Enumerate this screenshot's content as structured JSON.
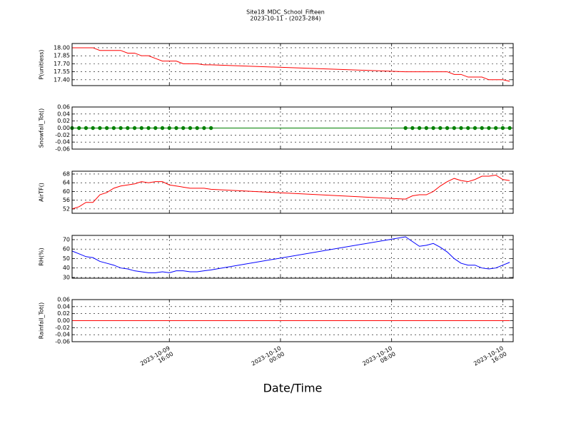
{
  "figure": {
    "title": "Site18_MDC_School_Fifteen",
    "subtitle": "2023-10-11 - (2023-284)"
  },
  "x_axis": {
    "label": "Date/Time",
    "xlim": [
      "2023-10-09 09:00",
      "2023-10-10 16:45"
    ],
    "xticks": [
      "2023-10-09 16:00",
      "2023-10-10 00:00",
      "2023-10-10 08:00",
      "2023-10-10 16:00"
    ],
    "x": [
      "2023-10-09 09:00",
      "2023-10-09 09:30",
      "2023-10-09 10:00",
      "2023-10-09 10:30",
      "2023-10-09 11:00",
      "2023-10-09 11:30",
      "2023-10-09 12:00",
      "2023-10-09 12:30",
      "2023-10-09 13:00",
      "2023-10-09 13:30",
      "2023-10-09 14:00",
      "2023-10-09 14:30",
      "2023-10-09 15:00",
      "2023-10-09 15:30",
      "2023-10-09 16:00",
      "2023-10-09 16:30",
      "2023-10-09 17:00",
      "2023-10-09 17:30",
      "2023-10-09 18:00",
      "2023-10-09 18:30",
      "2023-10-09 19:00",
      "2023-10-10 09:00",
      "2023-10-10 09:30",
      "2023-10-10 10:00",
      "2023-10-10 10:30",
      "2023-10-10 11:00",
      "2023-10-10 11:30",
      "2023-10-10 12:00",
      "2023-10-10 12:30",
      "2023-10-10 13:00",
      "2023-10-10 13:30",
      "2023-10-10 14:00",
      "2023-10-10 14:30",
      "2023-10-10 15:00",
      "2023-10-10 15:30",
      "2023-10-10 16:00",
      "2023-10-10 16:30"
    ]
  },
  "chart_data": [
    {
      "type": "line",
      "ylabel": "P(unitless)",
      "color": "#ff0000",
      "marker": false,
      "grid": true,
      "ylim": [
        17.29,
        18.08
      ],
      "yticks": [
        {
          "value": 17.4,
          "label": "17.40"
        },
        {
          "value": 17.55,
          "label": "17.55"
        },
        {
          "value": 17.7,
          "label": "17.70"
        },
        {
          "value": 17.85,
          "label": "17.85"
        },
        {
          "value": 18,
          "label": "18.00"
        }
      ],
      "values": [
        18.0,
        18.0,
        18.0,
        18.0,
        17.95,
        17.95,
        17.95,
        17.95,
        17.9,
        17.9,
        17.85,
        17.85,
        17.8,
        17.75,
        17.75,
        17.75,
        17.7,
        17.7,
        17.7,
        17.68,
        17.68,
        17.55,
        17.55,
        17.55,
        17.55,
        17.55,
        17.55,
        17.55,
        17.5,
        17.5,
        17.45,
        17.45,
        17.45,
        17.4,
        17.4,
        17.4,
        17.37
      ]
    },
    {
      "type": "line",
      "ylabel": "Snowfall_Tot()",
      "color": "#008000",
      "marker": true,
      "grid": true,
      "ylim": [
        -0.06,
        0.06
      ],
      "yticks": [
        -0.06,
        -0.04,
        -0.02,
        {
          "value": 0,
          "label": "0.00"
        },
        0.02,
        0.04,
        0.06
      ],
      "values": [
        0,
        0,
        0,
        0,
        0,
        0,
        0,
        0,
        0,
        0,
        0,
        0,
        0,
        0,
        0,
        0,
        0,
        0,
        0,
        0,
        0,
        0,
        0,
        0,
        0,
        0,
        0,
        0,
        0,
        0,
        0,
        0,
        0,
        0,
        0,
        0,
        0
      ]
    },
    {
      "type": "line",
      "ylabel": "AirTF()",
      "color": "#ff0000",
      "marker": false,
      "grid": true,
      "ylim": [
        50,
        69.3
      ],
      "yticks": [
        52,
        56,
        60,
        64,
        68
      ],
      "values": [
        52,
        53,
        55,
        55,
        58.5,
        59.5,
        61.5,
        62.5,
        63,
        63.5,
        64.5,
        64,
        64.5,
        64.5,
        63,
        62.5,
        62,
        61.5,
        61.5,
        61.5,
        61,
        56.5,
        58,
        58.5,
        58.5,
        60,
        62.5,
        64.5,
        66,
        65,
        64.5,
        65.5,
        67,
        67,
        67.5,
        65.5,
        65
      ]
    },
    {
      "type": "line",
      "ylabel": "RH(%)",
      "color": "#0000ff",
      "marker": false,
      "grid": true,
      "ylim": [
        29.2,
        74.5
      ],
      "yticks": [
        30,
        40,
        50,
        60,
        70
      ],
      "values": [
        58,
        55,
        52,
        51,
        47,
        45,
        43,
        40,
        39,
        37,
        36,
        35,
        35,
        36,
        35,
        37,
        37,
        36,
        36,
        37,
        38,
        73,
        68,
        63,
        64,
        66,
        62,
        57,
        50,
        45,
        43,
        43,
        40,
        39,
        40,
        43,
        46
      ]
    },
    {
      "type": "line",
      "ylabel": "Rainfall_Tot()",
      "color": "#ff0000",
      "marker": false,
      "grid": true,
      "ylim": [
        -0.06,
        0.06
      ],
      "yticks": [
        -0.06,
        -0.04,
        -0.02,
        {
          "value": 0,
          "label": "0.00"
        },
        0.02,
        0.04,
        0.06
      ],
      "values": [
        0,
        0,
        0,
        0,
        0,
        0,
        0,
        0,
        0,
        0,
        0,
        0,
        0,
        0,
        0,
        0,
        0,
        0,
        0,
        0,
        0,
        0,
        0,
        0,
        0,
        0,
        0,
        0,
        0,
        0,
        0,
        0,
        0,
        0,
        0,
        0,
        0
      ]
    }
  ]
}
